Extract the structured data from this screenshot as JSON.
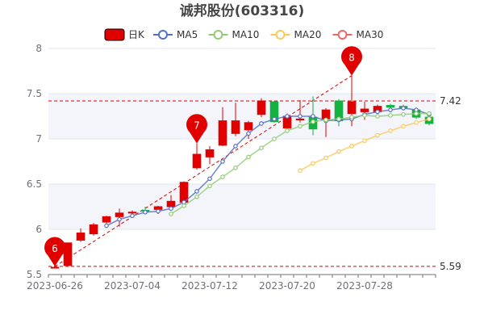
{
  "chart_data": {
    "type": "candlestick",
    "title": "诚邦股份(603316)",
    "legend": {
      "placement": "top-center",
      "entries": [
        {
          "name": "日K",
          "color": "#e00000",
          "icon": "filled-rounded-rect"
        },
        {
          "name": "MA5",
          "color": "#5470c6",
          "icon": "circle-line"
        },
        {
          "name": "MA10",
          "color": "#91cc75",
          "icon": "circle-line"
        },
        {
          "name": "MA20",
          "color": "#fac858",
          "icon": "circle-line"
        },
        {
          "name": "MA30",
          "color": "#ee6666",
          "icon": "circle-line"
        }
      ]
    },
    "ylim": [
      5.5,
      8
    ],
    "yticks": [
      5.5,
      6,
      6.5,
      7,
      7.5,
      8
    ],
    "grid": true,
    "colors": {
      "up": "#e00000",
      "down": "#14b143",
      "band": "#e9ecf5"
    },
    "x_tick_labels": [
      "2023-06-26",
      "2023-07-04",
      "2023-07-12",
      "2023-07-20",
      "2023-07-28"
    ],
    "candles": [
      {
        "o": 5.58,
        "c": 5.58,
        "l": 5.57,
        "h": 5.59
      },
      {
        "o": 5.6,
        "c": 5.85,
        "l": 5.59,
        "h": 5.85
      },
      {
        "o": 5.88,
        "c": 5.96,
        "l": 5.86,
        "h": 6.01
      },
      {
        "o": 5.95,
        "c": 6.05,
        "l": 5.93,
        "h": 6.07
      },
      {
        "o": 6.08,
        "c": 6.14,
        "l": 6.06,
        "h": 6.15
      },
      {
        "o": 6.14,
        "c": 6.18,
        "l": 6.03,
        "h": 6.23
      },
      {
        "o": 6.18,
        "c": 6.19,
        "l": 6.15,
        "h": 6.21
      },
      {
        "o": 6.21,
        "c": 6.2,
        "l": 6.18,
        "h": 6.25
      },
      {
        "o": 6.22,
        "c": 6.25,
        "l": 6.17,
        "h": 6.26
      },
      {
        "o": 6.25,
        "c": 6.31,
        "l": 6.22,
        "h": 6.38
      },
      {
        "o": 6.3,
        "c": 6.52,
        "l": 6.27,
        "h": 6.53
      },
      {
        "o": 6.68,
        "c": 6.83,
        "l": 6.66,
        "h": 6.95
      },
      {
        "o": 6.8,
        "c": 6.88,
        "l": 6.72,
        "h": 6.92
      },
      {
        "o": 6.93,
        "c": 7.2,
        "l": 6.92,
        "h": 7.35
      },
      {
        "o": 7.06,
        "c": 7.2,
        "l": 7.03,
        "h": 7.4
      },
      {
        "o": 7.1,
        "c": 7.18,
        "l": 7.0,
        "h": 7.2
      },
      {
        "o": 7.27,
        "c": 7.42,
        "l": 7.24,
        "h": 7.45
      },
      {
        "o": 7.41,
        "c": 7.19,
        "l": 7.18,
        "h": 7.42
      },
      {
        "o": 7.12,
        "c": 7.25,
        "l": 7.1,
        "h": 7.28
      },
      {
        "o": 7.21,
        "c": 7.22,
        "l": 7.18,
        "h": 7.43
      },
      {
        "o": 7.24,
        "c": 7.11,
        "l": 7.04,
        "h": 7.47
      },
      {
        "o": 7.22,
        "c": 7.32,
        "l": 7.02,
        "h": 7.34
      },
      {
        "o": 7.42,
        "c": 7.2,
        "l": 7.14,
        "h": 7.44
      },
      {
        "o": 7.28,
        "c": 7.41,
        "l": 7.14,
        "h": 7.7
      },
      {
        "o": 7.3,
        "c": 7.33,
        "l": 7.21,
        "h": 7.41
      },
      {
        "o": 7.3,
        "c": 7.36,
        "l": 7.28,
        "h": 7.38
      },
      {
        "o": 7.37,
        "c": 7.35,
        "l": 7.33,
        "h": 7.39
      },
      {
        "o": 7.36,
        "c": 7.34,
        "l": 7.32,
        "h": 7.38
      },
      {
        "o": 7.32,
        "c": 7.24,
        "l": 7.22,
        "h": 7.35
      },
      {
        "o": 7.24,
        "c": 7.17,
        "l": 7.15,
        "h": 7.26
      }
    ],
    "ma5": [
      null,
      null,
      null,
      null,
      6.04,
      6.11,
      6.15,
      6.19,
      6.2,
      6.23,
      6.3,
      6.42,
      6.56,
      6.75,
      6.92,
      7.06,
      7.17,
      7.22,
      7.25,
      7.25,
      7.25,
      7.2,
      7.21,
      7.22,
      7.27,
      7.3,
      7.32,
      7.34,
      7.32,
      7.27
    ],
    "ma10": [
      null,
      null,
      null,
      null,
      null,
      null,
      null,
      null,
      null,
      6.17,
      6.26,
      6.36,
      6.48,
      6.58,
      6.68,
      6.8,
      6.9,
      7.0,
      7.09,
      7.14,
      7.19,
      7.21,
      7.22,
      7.24,
      7.26,
      7.25,
      7.26,
      7.27,
      7.28,
      7.28
    ],
    "ma20": [
      null,
      null,
      null,
      null,
      null,
      null,
      null,
      null,
      null,
      null,
      null,
      null,
      null,
      null,
      null,
      null,
      null,
      null,
      null,
      6.65,
      6.73,
      6.79,
      6.86,
      6.92,
      6.98,
      7.04,
      7.09,
      7.14,
      7.18,
      7.22
    ],
    "markpoints": [
      {
        "label": "6",
        "index": 0,
        "value": 5.59,
        "color": "#e00000"
      },
      {
        "label": "7",
        "index": 11,
        "value": 6.95,
        "color": "#e00000"
      },
      {
        "label": "8",
        "index": 23,
        "value": 7.7,
        "color": "#e00000"
      }
    ],
    "marklines": [
      {
        "label": "7.42",
        "value": 7.42,
        "color": "#e00000"
      },
      {
        "label": "5.59",
        "value": 5.59,
        "color": "#e00000"
      }
    ],
    "trendline": {
      "from_index": 0,
      "from_value": 5.59,
      "to_index": 23,
      "to_value": 7.7
    }
  }
}
